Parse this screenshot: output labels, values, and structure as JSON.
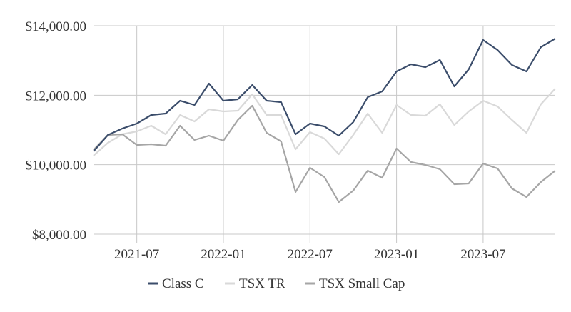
{
  "chart_data": {
    "type": "line",
    "title": "",
    "xlabel": "",
    "ylabel": "",
    "x": [
      "2021-04",
      "2021-05",
      "2021-06",
      "2021-07",
      "2021-08",
      "2021-09",
      "2021-10",
      "2021-11",
      "2021-12",
      "2022-01",
      "2022-02",
      "2022-03",
      "2022-04",
      "2022-05",
      "2022-06",
      "2022-07",
      "2022-08",
      "2022-09",
      "2022-10",
      "2022-11",
      "2022-12",
      "2023-01",
      "2023-02",
      "2023-03",
      "2023-04",
      "2023-05",
      "2023-06",
      "2023-07",
      "2023-08",
      "2023-09",
      "2023-10",
      "2023-11",
      "2023-12"
    ],
    "x_ticks": [
      "2021-07",
      "2022-01",
      "2022-07",
      "2023-01",
      "2023-07"
    ],
    "y_ticks": [
      "$8,000.00",
      "$10,000.00",
      "$12,000.00",
      "$14,000.00"
    ],
    "y_tick_values": [
      8000,
      10000,
      12000,
      14000
    ],
    "ylim": [
      8000,
      14000
    ],
    "grid": true,
    "legend_position": "bottom",
    "series": [
      {
        "name": "Class C",
        "color": "#3b4d6b",
        "values": [
          10383,
          10856,
          11041,
          11185,
          11431,
          11472,
          11842,
          11719,
          12335,
          11842,
          11883,
          12294,
          11842,
          11801,
          10876,
          11185,
          11103,
          10835,
          11226,
          11945,
          12109,
          12685,
          12890,
          12808,
          13014,
          12253,
          12747,
          13589,
          13301,
          12870,
          12685,
          13384,
          13630
        ]
      },
      {
        "name": "TSX TR",
        "color": "#d9d9d9",
        "values": [
          10260,
          10630,
          10876,
          10959,
          11123,
          10876,
          11431,
          11246,
          11596,
          11534,
          11554,
          12027,
          11431,
          11431,
          10445,
          10938,
          10753,
          10301,
          10856,
          11472,
          10918,
          11719,
          11431,
          11410,
          11739,
          11144,
          11534,
          11842,
          11678,
          11287,
          10918,
          11739,
          12192
        ]
      },
      {
        "name": "TSX Small Cap",
        "color": "#a6a6a6",
        "values": [
          10424,
          10856,
          10876,
          10568,
          10589,
          10548,
          11123,
          10712,
          10835,
          10691,
          11287,
          11698,
          10918,
          10671,
          9212,
          9911,
          9643,
          8924,
          9253,
          9829,
          9623,
          10465,
          10075,
          9993,
          9870,
          9438,
          9459,
          10034,
          9890,
          9315,
          9068,
          9500,
          9829
        ]
      }
    ]
  }
}
